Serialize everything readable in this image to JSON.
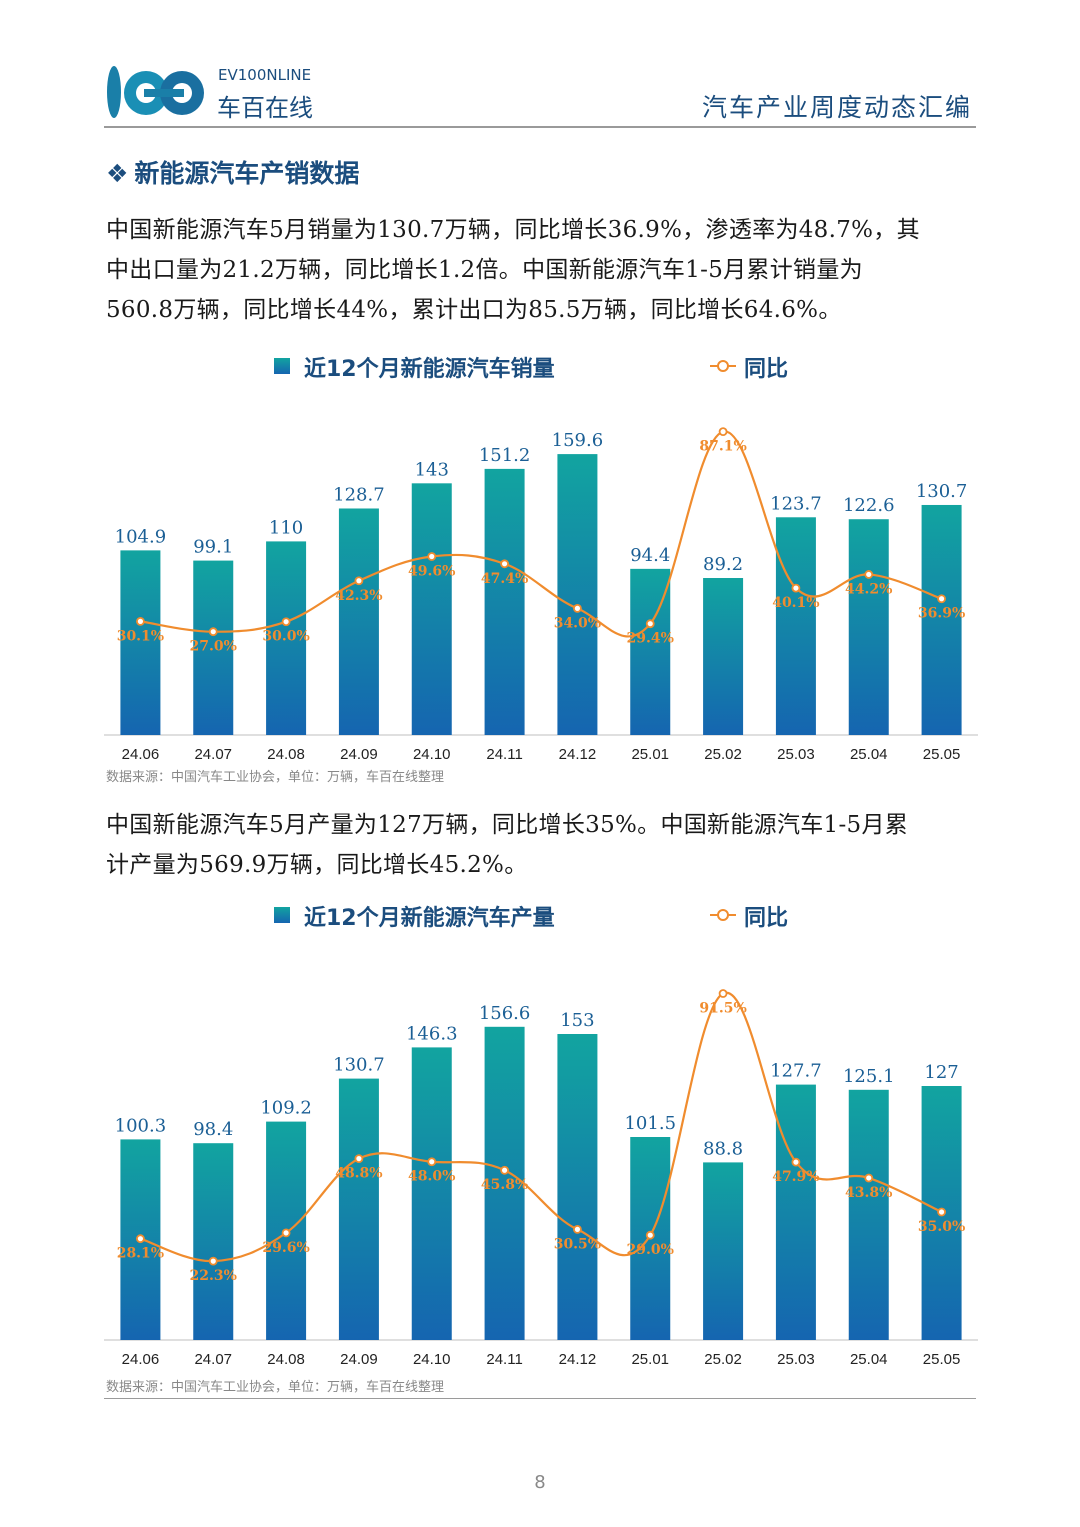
{
  "header": {
    "logo_text_en": "EV100NLINE",
    "logo_text_cn": "车百在线",
    "publication_title": "汽车产业周度动态汇编"
  },
  "section": {
    "icon": "diamond-bullet-icon",
    "title": "新能源汽车产销数据"
  },
  "paragraph_sales": {
    "lines": [
      "中国新能源汽车5月销量为130.7万辆，同比增长36.9%，渗透率为48.7%，其",
      "中出口量为21.2万辆，同比增长1.2倍。中国新能源汽车1-5月累计销量为",
      "560.8万辆，同比增长44%，累计出口为85.5万辆，同比增长64.6%。"
    ]
  },
  "paragraph_production": {
    "lines": [
      "中国新能源汽车5月产量为127万辆，同比增长35%。中国新能源汽车1-5月累",
      "计产量为569.9万辆，同比增长45.2%。"
    ]
  },
  "colors": {
    "brand": "#1b4d7e",
    "bar_top": "#12a4a0",
    "bar_bottom": "#1565b0",
    "line": "#f08c2e"
  },
  "chart_data": [
    {
      "type": "bar",
      "legend_bar": "近12个月新能源汽车销量",
      "legend_line": "同比",
      "categories": [
        "24.06",
        "24.07",
        "24.08",
        "24.09",
        "24.10",
        "24.11",
        "24.12",
        "25.01",
        "25.02",
        "25.03",
        "25.04",
        "25.05"
      ],
      "series": [
        {
          "name": "近12个月新能源汽车销量",
          "type": "bar",
          "values": [
            104.9,
            99.1,
            110,
            128.7,
            143,
            151.2,
            159.6,
            94.4,
            89.2,
            123.7,
            122.6,
            130.7
          ],
          "labels": [
            "104.9",
            "99.1",
            "110",
            "128.7",
            "143",
            "151.2",
            "159.6",
            "94.4",
            "89.2",
            "123.7",
            "122.6",
            "130.7"
          ]
        },
        {
          "name": "同比",
          "type": "line",
          "values": [
            30.1,
            27.0,
            30.0,
            42.3,
            49.6,
            47.4,
            34.0,
            29.4,
            87.1,
            40.1,
            44.2,
            36.9
          ],
          "labels": [
            "30.1%",
            "27.0%",
            "30.0%",
            "42.3%",
            "49.6%",
            "47.4%",
            "34.0%",
            "29.4%",
            "87.1%",
            "40.1%",
            "44.2%",
            "36.9%"
          ]
        }
      ],
      "source": "数据来源：中国汽车工业协会，单位：万辆，车百在线整理"
    },
    {
      "type": "bar",
      "legend_bar": "近12个月新能源汽车产量",
      "legend_line": "同比",
      "categories": [
        "24.06",
        "24.07",
        "24.08",
        "24.09",
        "24.10",
        "24.11",
        "24.12",
        "25.01",
        "25.02",
        "25.03",
        "25.04",
        "25.05"
      ],
      "series": [
        {
          "name": "近12个月新能源汽车产量",
          "type": "bar",
          "values": [
            100.3,
            98.4,
            109.2,
            130.7,
            146.3,
            156.6,
            153,
            101.5,
            88.8,
            127.7,
            125.1,
            127
          ],
          "labels": [
            "100.3",
            "98.4",
            "109.2",
            "130.7",
            "146.3",
            "156.6",
            "153",
            "101.5",
            "88.8",
            "127.7",
            "125.1",
            "127"
          ]
        },
        {
          "name": "同比",
          "type": "line",
          "values": [
            28.1,
            22.3,
            29.6,
            48.8,
            48.0,
            45.8,
            30.5,
            29.0,
            91.5,
            47.9,
            43.8,
            35.0
          ],
          "labels": [
            "28.1%",
            "22.3%",
            "29.6%",
            "48.8%",
            "48.0%",
            "45.8%",
            "30.5%",
            "29.0%",
            "91.5%",
            "47.9%",
            "43.8%",
            "35.0%"
          ]
        }
      ],
      "source": "数据来源：中国汽车工业协会，单位：万辆，车百在线整理"
    }
  ],
  "page_number": "8"
}
